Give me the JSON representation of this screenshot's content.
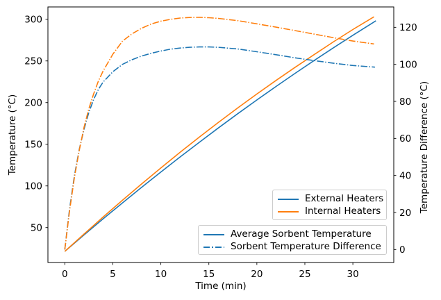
{
  "palette": {
    "blue": "#1f77b4",
    "orange": "#ff7f0e",
    "axis": "#000000",
    "text": "#000000",
    "legend_border": "#cccccc",
    "background": "#ffffff"
  },
  "chart_data": {
    "type": "line",
    "title": "",
    "xlabel": "Time (min)",
    "ylabel_left": "Temperature (°C)",
    "ylabel_right": "Temperature Difference (°C)",
    "grid": false,
    "axes": {
      "x": {
        "label": "Time (min)",
        "ticks": [
          0,
          5,
          10,
          15,
          20,
          25,
          30
        ],
        "range": [
          -1.76,
          34.26
        ]
      },
      "y_left": {
        "label": "Temperature (°C)",
        "ticks": [
          50,
          100,
          150,
          200,
          250,
          300
        ],
        "range": [
          8.1,
          314.8
        ]
      },
      "y_right": {
        "label": "Temperature Difference (°C)",
        "ticks": [
          0,
          20,
          40,
          60,
          80,
          100,
          120
        ],
        "range": [
          -7.0,
          131.0
        ]
      }
    },
    "series": [
      {
        "name": "Average Sorbent Temperature (External Heaters)",
        "axis": "y_left",
        "color": "blue",
        "style": "solid",
        "x": [
          0,
          2,
          4,
          6,
          8,
          10,
          12,
          14,
          16,
          18,
          20,
          22,
          24,
          26,
          28,
          30,
          32.4
        ],
        "y": [
          21.4,
          41.2,
          60.6,
          79.6,
          98.3,
          116.7,
          134.7,
          152.3,
          169.6,
          186.6,
          203.1,
          219.4,
          235.2,
          250.8,
          266.0,
          280.8,
          298.2
        ]
      },
      {
        "name": "Average Sorbent Temperature (Internal Heaters)",
        "axis": "y_left",
        "color": "orange",
        "style": "solid",
        "x": [
          0,
          2,
          4,
          6,
          8,
          10,
          12,
          14,
          16,
          18,
          20,
          22,
          24,
          26,
          28,
          30,
          32.2
        ],
        "y": [
          21.4,
          42.3,
          62.8,
          82.8,
          102.4,
          121.5,
          140.3,
          158.5,
          176.2,
          193.5,
          210.3,
          226.6,
          242.5,
          257.9,
          273.1,
          287.7,
          303.0
        ]
      },
      {
        "name": "Sorbent Temperature Difference (External Heaters)",
        "axis": "y_right",
        "color": "blue",
        "style": "dashdot",
        "x": [
          0,
          0.5,
          1,
          1.5,
          2,
          2.5,
          3,
          3.5,
          4,
          5,
          6,
          7,
          8,
          9,
          10,
          11,
          12,
          13,
          14,
          15,
          16,
          18,
          20,
          22,
          24,
          26,
          28,
          30,
          32.3
        ],
        "y": [
          0,
          22,
          40,
          54,
          65,
          74,
          81,
          86.5,
          90.5,
          96,
          100,
          102.5,
          104.5,
          106,
          107.2,
          108.2,
          108.8,
          109.2,
          109.4,
          109.4,
          109.2,
          108.3,
          106.8,
          105.2,
          103.5,
          102,
          100.6,
          99.4,
          98.5
        ]
      },
      {
        "name": "Sorbent Temperature Difference (Internal Heaters)",
        "axis": "y_right",
        "color": "orange",
        "style": "dashdot",
        "x": [
          0,
          0.5,
          1,
          1.5,
          2,
          2.5,
          3,
          3.5,
          4,
          5,
          6,
          7,
          8,
          9,
          10,
          11,
          12,
          13,
          14,
          15,
          16,
          18,
          20,
          22,
          24,
          26,
          28,
          30,
          32.2
        ],
        "y": [
          0,
          21,
          39,
          53.5,
          66,
          76,
          84,
          91,
          96.5,
          105.5,
          112.5,
          116.5,
          119.5,
          121.8,
          123.3,
          124.3,
          125,
          125.3,
          125.4,
          125.2,
          124.8,
          123.6,
          121.9,
          120.1,
          118.2,
          116.3,
          114.4,
          112.6,
          111
        ]
      }
    ],
    "legends": [
      {
        "name": "heaters",
        "entries": [
          {
            "label": "External Heaters",
            "color": "blue",
            "style": "solid"
          },
          {
            "label": "Internal Heaters",
            "color": "orange",
            "style": "solid"
          }
        ]
      },
      {
        "name": "sorbent",
        "entries": [
          {
            "label": "Average Sorbent Temperature",
            "color": "blue",
            "style": "solid"
          },
          {
            "label": "Sorbent Temperature Difference",
            "color": "blue",
            "style": "dashdot"
          }
        ]
      }
    ]
  }
}
